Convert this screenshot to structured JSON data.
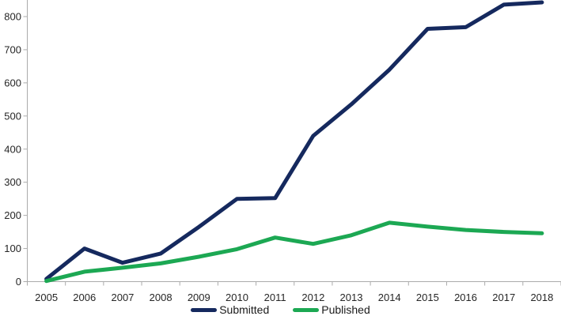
{
  "chart_data": {
    "type": "line",
    "title": "",
    "xlabel": "",
    "ylabel": "",
    "categories": [
      "2005",
      "2006",
      "2007",
      "2008",
      "2009",
      "2010",
      "2011",
      "2012",
      "2013",
      "2014",
      "2015",
      "2016",
      "2017",
      "2018"
    ],
    "series": [
      {
        "name": "Submitted",
        "color": "#15295E",
        "values": [
          8,
          100,
          57,
          85,
          165,
          250,
          252,
          440,
          535,
          640,
          763,
          768,
          836,
          843
        ]
      },
      {
        "name": "Published",
        "color": "#1CA853",
        "values": [
          2,
          30,
          42,
          55,
          75,
          98,
          133,
          114,
          140,
          178,
          166,
          156,
          150,
          146
        ]
      }
    ],
    "y_ticks": [
      0,
      100,
      200,
      300,
      400,
      500,
      600,
      700,
      800
    ],
    "ylim": [
      0,
      849
    ],
    "grid": false,
    "legend_position": "bottom",
    "axis_color": "#ABABAB",
    "tick_label_color": "#262626"
  }
}
